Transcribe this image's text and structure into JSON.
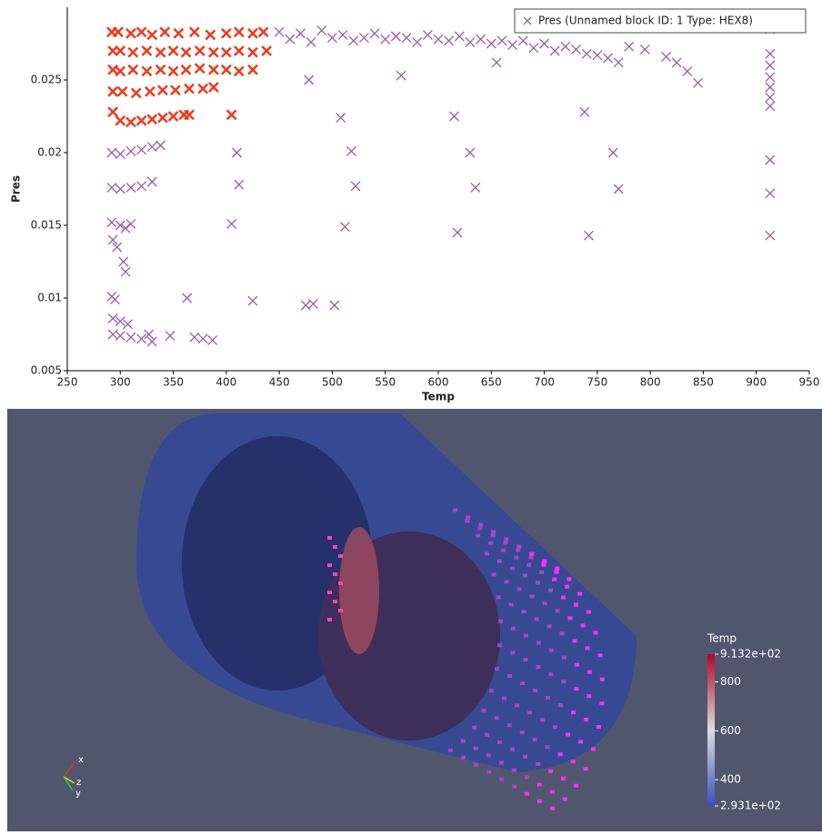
{
  "chart_data": {
    "type": "scatter",
    "x_label": "Temp",
    "y_label": "Pres",
    "xlim": [
      250,
      950
    ],
    "xticks": [
      250,
      300,
      350,
      400,
      450,
      500,
      550,
      600,
      650,
      700,
      750,
      800,
      850,
      900,
      950
    ],
    "ylim": [
      0.005,
      0.03
    ],
    "yticks": [
      0.005,
      0.01,
      0.015,
      0.02,
      0.025
    ],
    "legend": "upper right",
    "marker": "x",
    "series": [
      {
        "name": "Pres (Unnamed block ID: 1 Type: HEX8)",
        "color": "#9c56b4",
        "x": [
          450,
          460,
          470,
          480,
          490,
          500,
          510,
          520,
          530,
          540,
          550,
          560,
          570,
          580,
          590,
          600,
          610,
          620,
          630,
          640,
          650,
          660,
          670,
          680,
          690,
          700,
          710,
          720,
          730,
          740,
          750,
          760,
          770,
          780,
          795,
          815,
          825,
          835,
          845,
          478,
          508,
          565,
          615,
          655,
          738,
          410,
          518,
          630,
          765,
          412,
          522,
          635,
          770,
          405,
          512,
          618,
          742,
          363,
          425,
          475,
          482,
          502,
          347,
          370,
          378,
          387,
          913,
          913,
          913,
          913,
          913,
          913,
          913,
          913,
          913,
          913,
          292,
          300,
          310,
          320,
          330,
          338,
          292,
          300,
          310,
          320,
          330,
          292,
          300,
          305,
          310,
          293,
          297,
          303,
          305,
          292,
          295,
          293,
          300,
          307,
          293,
          300,
          310,
          320,
          327,
          330
        ],
        "values": [
          0.0283,
          0.0278,
          0.0282,
          0.0276,
          0.0284,
          0.0279,
          0.0281,
          0.0277,
          0.0279,
          0.0282,
          0.0278,
          0.028,
          0.0279,
          0.0276,
          0.0281,
          0.0278,
          0.0277,
          0.028,
          0.0276,
          0.0278,
          0.0275,
          0.0277,
          0.0274,
          0.0277,
          0.0272,
          0.0275,
          0.027,
          0.0273,
          0.0271,
          0.0268,
          0.0267,
          0.0265,
          0.0262,
          0.0273,
          0.0271,
          0.0266,
          0.0262,
          0.0256,
          0.0248,
          0.025,
          0.0224,
          0.0253,
          0.0225,
          0.0262,
          0.0228,
          0.02,
          0.0201,
          0.02,
          0.02,
          0.0178,
          0.0177,
          0.0176,
          0.0175,
          0.0151,
          0.0149,
          0.0145,
          0.0143,
          0.01,
          0.0098,
          0.0095,
          0.0096,
          0.0095,
          0.0074,
          0.0073,
          0.0072,
          0.0071,
          0.0285,
          0.0268,
          0.026,
          0.0252,
          0.0245,
          0.0238,
          0.0232,
          0.0195,
          0.0172,
          0.0143,
          0.02,
          0.0199,
          0.0201,
          0.0202,
          0.0204,
          0.0205,
          0.0176,
          0.0175,
          0.0176,
          0.0177,
          0.018,
          0.0152,
          0.015,
          0.0148,
          0.0151,
          0.014,
          0.0135,
          0.0125,
          0.0118,
          0.0101,
          0.0099,
          0.0086,
          0.0084,
          0.0082,
          0.0075,
          0.0074,
          0.0073,
          0.0072,
          0.0075,
          0.007
        ]
      },
      {
        "color": "#ee3a1c",
        "x": [
          292,
          298,
          310,
          320,
          330,
          342,
          355,
          370,
          385,
          400,
          412,
          425,
          435,
          293,
          300,
          312,
          325,
          338,
          350,
          362,
          375,
          388,
          400,
          412,
          425,
          438,
          293,
          300,
          312,
          325,
          338,
          350,
          362,
          375,
          388,
          400,
          412,
          425,
          293,
          302,
          315,
          328,
          340,
          352,
          365,
          378,
          388,
          293,
          300,
          310,
          320,
          330,
          340,
          350,
          360,
          365,
          405
        ],
        "values": [
          0.0283,
          0.0283,
          0.0282,
          0.0283,
          0.0281,
          0.0283,
          0.0282,
          0.0283,
          0.0281,
          0.0282,
          0.0283,
          0.0282,
          0.0283,
          0.027,
          0.027,
          0.0269,
          0.027,
          0.0269,
          0.027,
          0.0269,
          0.027,
          0.0269,
          0.0269,
          0.027,
          0.0269,
          0.027,
          0.0257,
          0.0256,
          0.0257,
          0.0256,
          0.0257,
          0.0256,
          0.0257,
          0.0258,
          0.0257,
          0.0257,
          0.0256,
          0.0257,
          0.0242,
          0.0242,
          0.0241,
          0.0242,
          0.0243,
          0.0243,
          0.0244,
          0.0244,
          0.0245,
          0.0228,
          0.0222,
          0.0221,
          0.0222,
          0.0223,
          0.0224,
          0.0225,
          0.0226,
          0.0226,
          0.0226
        ]
      }
    ]
  },
  "render_view": {
    "color_legend": {
      "title": "Temp",
      "range": [
        293.1,
        913.2
      ],
      "ticks": [
        {
          "value": 913.2,
          "label": "9.132e+02"
        },
        800,
        600,
        400,
        {
          "value": 293.1,
          "label": "2.931e+02"
        }
      ]
    },
    "orientation_axes": {
      "labels": [
        "x",
        "z",
        "y"
      ]
    }
  }
}
